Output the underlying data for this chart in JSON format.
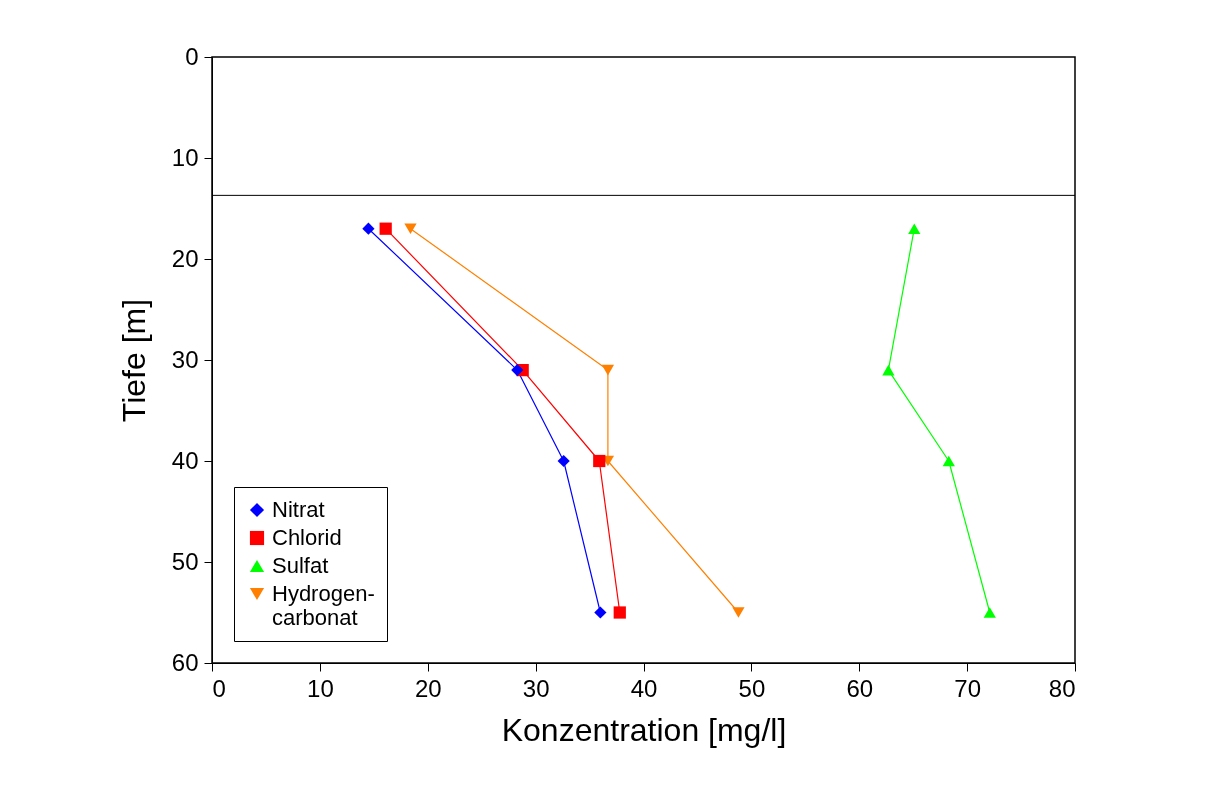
{
  "chart_data": {
    "type": "line",
    "xlabel": "Konzentration [mg/l]",
    "ylabel": "Tiefe [m]",
    "xlim": [
      0,
      80
    ],
    "xticks": [
      0,
      10,
      20,
      30,
      40,
      50,
      60,
      70,
      80
    ],
    "ylim": [
      60,
      0
    ],
    "yticks": [
      0,
      10,
      20,
      30,
      40,
      50,
      60
    ],
    "grid": false,
    "legend": "bottom left",
    "ref_lines": [
      {
        "axis": "y",
        "value": 13.7,
        "color": "#000000"
      }
    ],
    "series": [
      {
        "name": "Nitrat",
        "color": "#0000ff",
        "marker": "diamond",
        "x": [
          14.5,
          28.3,
          32.6,
          36.0
        ],
        "values": [
          17,
          31,
          40,
          55
        ]
      },
      {
        "name": "Chlorid",
        "color": "#ff0000",
        "marker": "square",
        "x": [
          16.1,
          28.8,
          35.9,
          37.8
        ],
        "values": [
          17,
          31,
          40,
          55
        ]
      },
      {
        "name": "Sulfat",
        "color": "#00ff00",
        "marker": "triangle",
        "x": [
          65.1,
          62.7,
          68.3,
          72.1
        ],
        "values": [
          17,
          31,
          40,
          55
        ]
      },
      {
        "name": "Hydrogen-\ncarbonat",
        "color": "#ff8000",
        "marker": "triangle-down",
        "x": [
          18.4,
          36.7,
          36.7,
          48.8
        ],
        "values": [
          17,
          31,
          40,
          55
        ]
      }
    ]
  }
}
